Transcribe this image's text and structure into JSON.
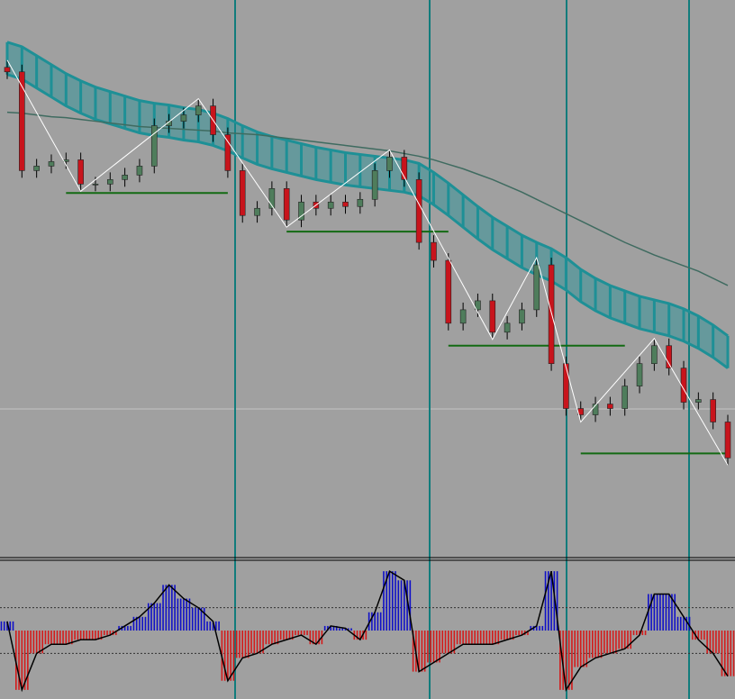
{
  "chart_data": {
    "type": "candlestick",
    "ylim": [
      0,
      620
    ],
    "background": "#a0a0a0",
    "up_color": "#4f7d5c",
    "down_color": "#c8141c",
    "open": [
      545,
      540,
      430,
      435,
      440,
      442,
      415,
      415,
      420,
      425,
      435,
      480,
      485,
      492,
      502,
      470,
      430,
      380,
      388,
      410,
      375,
      395,
      388,
      395,
      390,
      398,
      430,
      445,
      420,
      350,
      330,
      260,
      275,
      285,
      250,
      260,
      275,
      325,
      215,
      165,
      158,
      170,
      165,
      190,
      215,
      235,
      210,
      172,
      175,
      150
    ],
    "high": [
      553,
      548,
      443,
      448,
      450,
      450,
      423,
      428,
      433,
      443,
      488,
      493,
      500,
      510,
      510,
      478,
      438,
      396,
      418,
      418,
      403,
      403,
      403,
      403,
      406,
      438,
      453,
      453,
      428,
      358,
      338,
      283,
      293,
      293,
      268,
      283,
      333,
      333,
      223,
      173,
      178,
      178,
      198,
      223,
      243,
      243,
      218,
      183,
      183,
      158
    ],
    "low": [
      532,
      422,
      422,
      427,
      432,
      407,
      407,
      407,
      412,
      417,
      427,
      472,
      477,
      484,
      462,
      422,
      372,
      372,
      380,
      367,
      367,
      380,
      380,
      382,
      382,
      390,
      422,
      412,
      342,
      322,
      252,
      252,
      267,
      242,
      242,
      252,
      267,
      207,
      157,
      150,
      150,
      157,
      157,
      182,
      207,
      202,
      164,
      164,
      142,
      102
    ],
    "close": [
      540,
      430,
      435,
      440,
      442,
      415,
      415,
      420,
      425,
      435,
      480,
      485,
      492,
      502,
      470,
      430,
      380,
      388,
      410,
      375,
      395,
      388,
      395,
      390,
      398,
      430,
      445,
      420,
      350,
      330,
      260,
      275,
      285,
      250,
      260,
      275,
      325,
      215,
      165,
      158,
      170,
      165,
      190,
      215,
      235,
      210,
      172,
      175,
      150,
      110
    ],
    "band": {
      "color": "#1e9096",
      "upper": [
        573,
        568,
        558,
        548,
        538,
        530,
        523,
        518,
        513,
        508,
        505,
        503,
        500,
        498,
        494,
        488,
        480,
        473,
        468,
        464,
        460,
        456,
        453,
        450,
        448,
        446,
        444,
        442,
        438,
        428,
        416,
        403,
        390,
        378,
        368,
        358,
        350,
        343,
        333,
        320,
        310,
        302,
        296,
        290,
        286,
        282,
        276,
        268,
        258,
        246
      ],
      "lower": [
        537,
        532,
        522,
        512,
        502,
        494,
        487,
        482,
        477,
        472,
        469,
        467,
        464,
        462,
        458,
        452,
        444,
        437,
        432,
        428,
        424,
        420,
        417,
        414,
        412,
        410,
        408,
        406,
        402,
        392,
        380,
        367,
        354,
        342,
        332,
        322,
        314,
        307,
        297,
        284,
        274,
        266,
        260,
        254,
        250,
        246,
        240,
        232,
        222,
        210
      ]
    },
    "ma": {
      "color": "#3f6b60",
      "values": [
        495,
        494,
        492,
        490,
        489,
        487,
        485,
        483,
        481,
        479,
        478,
        477,
        476,
        475,
        474,
        472,
        471,
        470,
        468,
        466,
        464,
        462,
        460,
        458,
        456,
        454,
        452,
        449,
        446,
        442,
        437,
        432,
        426,
        420,
        413,
        406,
        398,
        390,
        382,
        374,
        366,
        358,
        350,
        343,
        336,
        330,
        324,
        318,
        310,
        302
      ]
    },
    "zigzag": {
      "color": "#ffffff",
      "x": [
        0,
        5,
        13,
        19,
        26,
        33,
        36,
        39,
        44,
        49
      ],
      "values": [
        553,
        407,
        510,
        367,
        453,
        242,
        333,
        150,
        243,
        102
      ]
    },
    "levels": {
      "color": "#136a13",
      "items": [
        {
          "x": [
            4,
            15
          ],
          "value": 405
        },
        {
          "x": [
            19,
            30
          ],
          "value": 362
        },
        {
          "x": [
            30,
            42
          ],
          "value": 235
        },
        {
          "x": [
            39,
            49
          ],
          "value": 115
        }
      ]
    },
    "oscillator": {
      "ylim": [
        -1.5,
        1.5
      ],
      "levels": [
        0.5,
        -0.5
      ],
      "pos_color": "#1010c8",
      "neg_color": "#d41a1a",
      "values": [
        0.2,
        -1.3,
        -0.5,
        -0.3,
        -0.3,
        -0.2,
        -0.2,
        -0.1,
        0.1,
        0.3,
        0.6,
        1.0,
        0.7,
        0.5,
        0.2,
        -1.1,
        -0.6,
        -0.5,
        -0.3,
        -0.2,
        -0.1,
        -0.3,
        0.1,
        0.05,
        -0.2,
        0.4,
        1.3,
        1.1,
        -0.9,
        -0.7,
        -0.5,
        -0.3,
        -0.3,
        -0.3,
        -0.2,
        -0.1,
        0.1,
        1.3,
        -1.3,
        -0.8,
        -0.6,
        -0.5,
        -0.4,
        -0.1,
        0.8,
        0.8,
        0.3,
        -0.2,
        -0.5,
        -1.0
      ]
    }
  }
}
